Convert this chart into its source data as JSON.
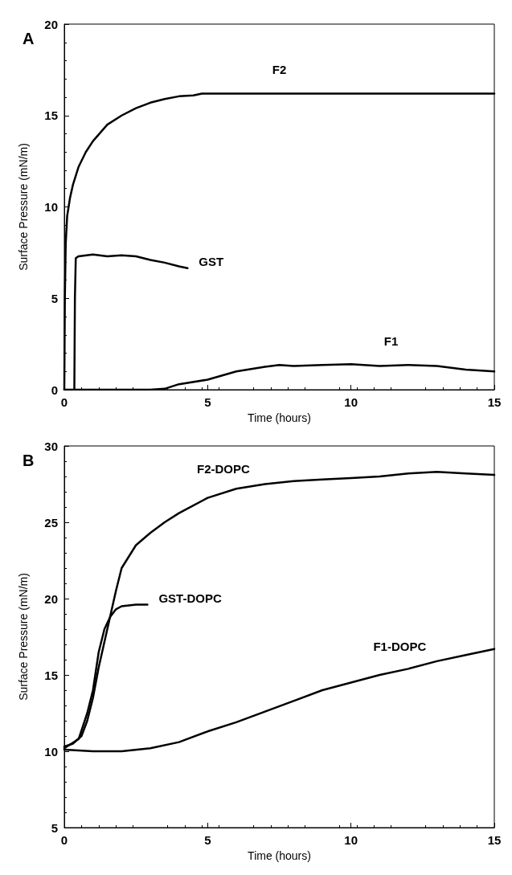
{
  "chart_data": [
    {
      "type": "line",
      "xlabel": "Time (hours)",
      "ylabel": "Surface Pressure (mN/m)",
      "xlim": [
        0,
        15
      ],
      "xticks": [
        0,
        5,
        10,
        15
      ],
      "ylim": [
        0,
        20
      ],
      "yticks": [
        0,
        5,
        10,
        15,
        20
      ],
      "marker": "none",
      "line_style": "solid",
      "annotations": [
        "A"
      ],
      "series": [
        {
          "name": "F2",
          "color": "#000000",
          "x": [
            0,
            0.02,
            0.05,
            0.1,
            0.2,
            0.3,
            0.5,
            0.75,
            1,
            1.5,
            2,
            2.5,
            3,
            3.5,
            4,
            4.5,
            4.8,
            5,
            10,
            15
          ],
          "values": [
            0,
            5,
            8,
            9.5,
            10.5,
            11.2,
            12.2,
            13,
            13.6,
            14.5,
            15,
            15.4,
            15.7,
            15.9,
            16.05,
            16.1,
            16.2,
            16.2,
            16.2,
            16.2
          ]
        },
        {
          "name": "GST",
          "color": "#000000",
          "x": [
            0.35,
            0.37,
            0.4,
            0.5,
            1,
            1.5,
            2,
            2.5,
            3,
            3.5,
            4,
            4.3
          ],
          "values": [
            0,
            5,
            7.2,
            7.3,
            7.4,
            7.3,
            7.35,
            7.3,
            7.1,
            6.95,
            6.75,
            6.65
          ]
        },
        {
          "name": "F1",
          "color": "#000000",
          "x": [
            0,
            3,
            3.5,
            4,
            5,
            6,
            7,
            7.5,
            8,
            9,
            10,
            11,
            12,
            13,
            14,
            15
          ],
          "values": [
            0,
            0,
            0.05,
            0.3,
            0.55,
            1,
            1.25,
            1.35,
            1.3,
            1.35,
            1.4,
            1.3,
            1.35,
            1.3,
            1.1,
            1
          ]
        }
      ]
    },
    {
      "type": "line",
      "xlabel": "Time (hours)",
      "ylabel": "Surface Pressure (mN/m)",
      "xlim": [
        0,
        15
      ],
      "xticks": [
        0,
        5,
        10,
        15
      ],
      "ylim": [
        5,
        30
      ],
      "yticks": [
        5,
        10,
        15,
        20,
        25,
        30
      ],
      "marker": "none",
      "line_style": "solid",
      "annotations": [
        "B"
      ],
      "series": [
        {
          "name": "F2-DOPC",
          "color": "#000000",
          "x": [
            0,
            0.3,
            0.6,
            0.8,
            1,
            1.2,
            1.5,
            1.8,
            2,
            2.5,
            3,
            3.5,
            4,
            5,
            6,
            7,
            8,
            9,
            10,
            11,
            12,
            13,
            14,
            15
          ],
          "values": [
            10.3,
            10.5,
            11,
            12,
            13.5,
            15.5,
            18,
            20.5,
            22,
            23.5,
            24.3,
            25,
            25.6,
            26.6,
            27.2,
            27.5,
            27.7,
            27.8,
            27.9,
            28,
            28.2,
            28.3,
            28.2,
            28.1
          ]
        },
        {
          "name": "GST-DOPC",
          "color": "#000000",
          "x": [
            0,
            0.5,
            0.8,
            1,
            1.2,
            1.4,
            1.6,
            1.8,
            2,
            2.5,
            2.9
          ],
          "values": [
            10.2,
            10.8,
            12.5,
            14,
            16.5,
            18,
            18.8,
            19.3,
            19.5,
            19.6,
            19.6
          ]
        },
        {
          "name": "F1-DOPC",
          "color": "#000000",
          "x": [
            0,
            1,
            2,
            3,
            4,
            5,
            6,
            7,
            8,
            9,
            10,
            11,
            12,
            13,
            14,
            15
          ],
          "values": [
            10.1,
            10,
            10,
            10.2,
            10.6,
            11.3,
            11.9,
            12.6,
            13.3,
            14,
            14.5,
            15,
            15.4,
            15.9,
            16.3,
            16.7
          ]
        }
      ]
    }
  ]
}
